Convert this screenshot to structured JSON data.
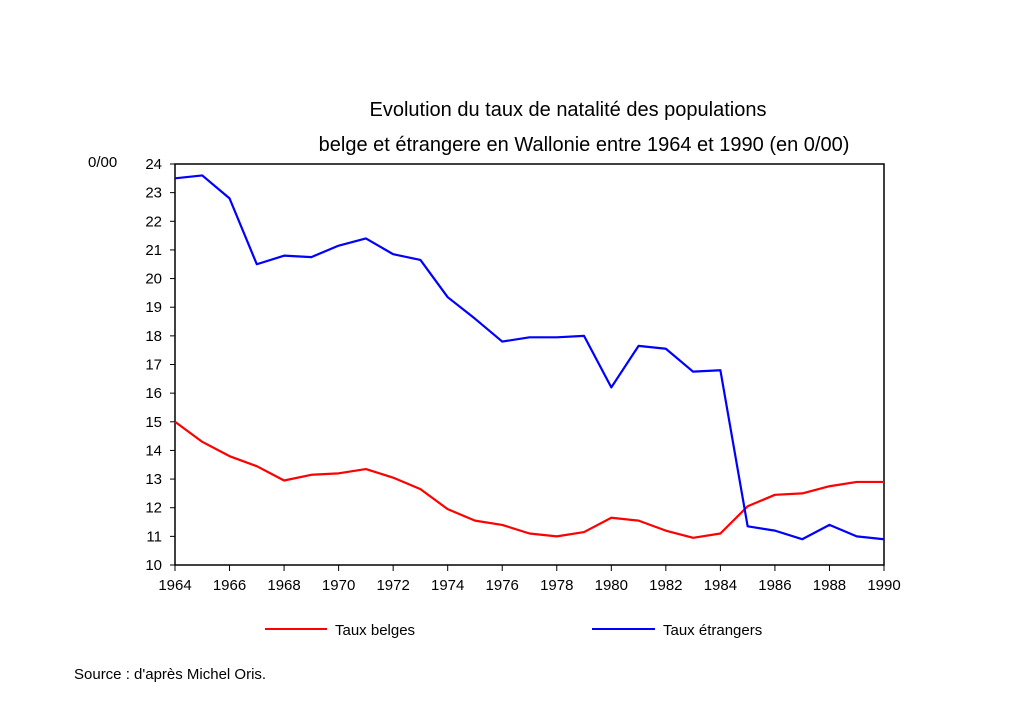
{
  "chart_data": {
    "type": "line",
    "title_line1": "Evolution du taux de natalité des populations",
    "title_line2": "belge et étrangere en Wallonie entre 1964 et 1990 (en 0/00)",
    "ylabel": "0/00",
    "xlabel": "",
    "x": [
      1964,
      1965,
      1966,
      1967,
      1968,
      1969,
      1970,
      1971,
      1972,
      1973,
      1974,
      1975,
      1976,
      1977,
      1978,
      1979,
      1980,
      1981,
      1982,
      1983,
      1984,
      1985,
      1986,
      1987,
      1988,
      1989,
      1990
    ],
    "xticks": [
      "1964",
      "1966",
      "1968",
      "1970",
      "1972",
      "1974",
      "1976",
      "1978",
      "1980",
      "1982",
      "1984",
      "1986",
      "1988",
      "1990"
    ],
    "yticks": [
      "10",
      "11",
      "12",
      "13",
      "14",
      "15",
      "16",
      "17",
      "18",
      "19",
      "20",
      "21",
      "22",
      "23",
      "24"
    ],
    "xlim": [
      1964,
      1990
    ],
    "ylim": [
      10,
      24
    ],
    "grid": false,
    "legend_position": "bottom",
    "series": [
      {
        "name": "Taux belges",
        "color": "#ff0000",
        "values": [
          15.0,
          14.3,
          13.8,
          13.45,
          12.95,
          13.15,
          13.2,
          13.35,
          13.05,
          12.65,
          11.95,
          11.55,
          11.4,
          11.1,
          11.0,
          11.15,
          11.65,
          11.55,
          11.2,
          10.95,
          11.1,
          12.05,
          12.45,
          12.5,
          12.75,
          12.9,
          12.9
        ]
      },
      {
        "name": "Taux étrangers",
        "color": "#0000ff",
        "values": [
          23.5,
          23.6,
          22.8,
          20.5,
          20.8,
          20.75,
          21.15,
          21.4,
          20.85,
          20.65,
          19.35,
          18.6,
          17.8,
          17.95,
          17.95,
          18.0,
          16.2,
          17.65,
          17.55,
          16.75,
          16.8,
          11.35,
          11.2,
          10.9,
          11.4,
          11.0,
          10.9
        ]
      }
    ]
  },
  "source": "Source : d'après Michel Oris."
}
